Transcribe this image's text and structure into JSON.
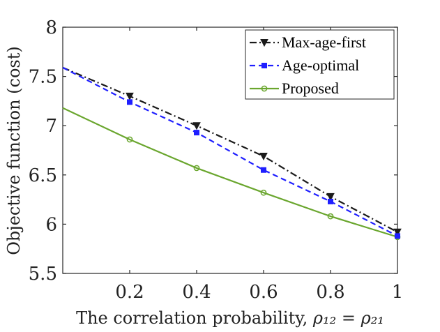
{
  "chart_data": {
    "type": "line",
    "title": "",
    "xlabel_text": "The correlation probability, ",
    "xlabel_math": "ρ₁₂ = ρ₂₁",
    "ylabel": "Objective function (cost)",
    "xlim": [
      0,
      1
    ],
    "ylim": [
      5.5,
      8
    ],
    "xticks": [
      0.2,
      0.4,
      0.6,
      0.8,
      1
    ],
    "xtick_labels": [
      "0.2",
      "0.4",
      "0.6",
      "0.8",
      "1"
    ],
    "yticks": [
      5.5,
      6,
      6.5,
      7,
      7.5,
      8
    ],
    "ytick_labels": [
      "5.5",
      "6",
      "6.5",
      "7",
      "7.5",
      "8"
    ],
    "legend_position": "top-right",
    "series": [
      {
        "name": "Max-age-first",
        "color": "#1a1a1a",
        "dash": "dashdot",
        "marker": "triangle-down",
        "x": [
          0,
          0.2,
          0.4,
          0.6,
          0.8,
          1
        ],
        "y": [
          7.59,
          7.3,
          7.0,
          6.69,
          6.28,
          5.92
        ]
      },
      {
        "name": "Age-optimal",
        "color": "#1f1fff",
        "dash": "dashed",
        "marker": "square",
        "x": [
          0,
          0.2,
          0.4,
          0.6,
          0.8,
          1
        ],
        "y": [
          7.59,
          7.24,
          6.93,
          6.55,
          6.23,
          5.88
        ]
      },
      {
        "name": "Proposed",
        "color": "#6aa62e",
        "dash": "solid",
        "marker": "circle",
        "x": [
          0,
          0.2,
          0.4,
          0.6,
          0.8,
          1
        ],
        "y": [
          7.18,
          6.86,
          6.57,
          6.32,
          6.08,
          5.87
        ]
      }
    ]
  }
}
